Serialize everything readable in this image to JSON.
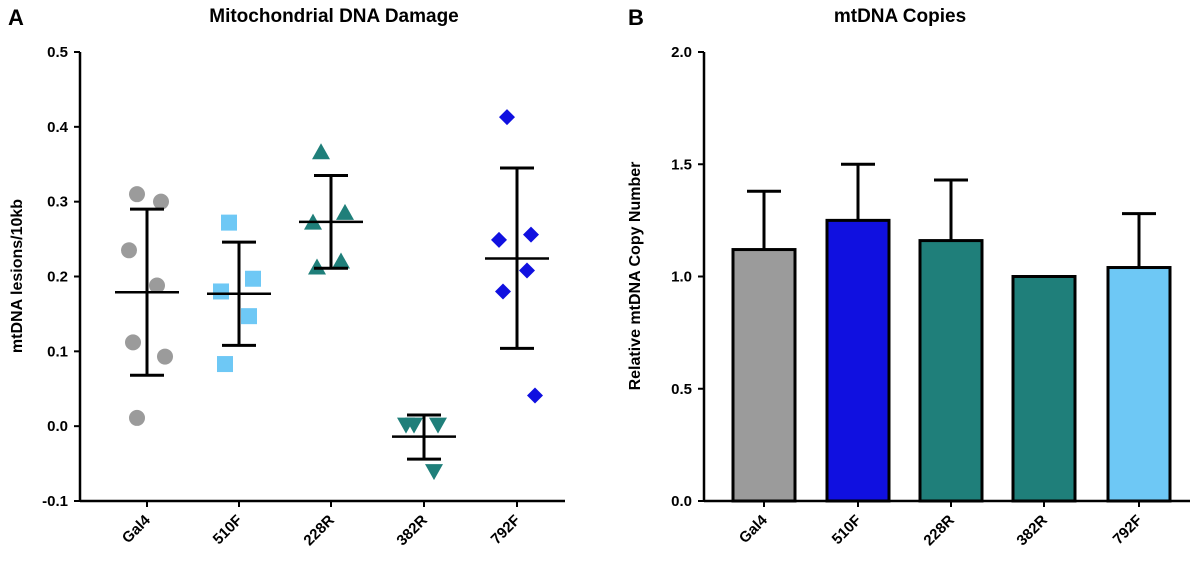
{
  "panels": [
    {
      "letter": "A",
      "title": "Mitochondrial DNA Damage",
      "ylabel": "mtDNA lesions/10kb"
    },
    {
      "letter": "B",
      "title": "mtDNA Copies",
      "ylabel": "Relative mtDNA Copy Number"
    }
  ],
  "chart_data": [
    {
      "type": "scatter",
      "title": "Mitochondrial DNA Damage",
      "xlabel": "",
      "ylabel": "mtDNA lesions/10kb",
      "ylim": [
        -0.1,
        0.5
      ],
      "yticks": [
        "-0.1",
        "0.0",
        "0.1",
        "0.2",
        "0.3",
        "0.4",
        "0.5"
      ],
      "grid": false,
      "categories": [
        "Gal4",
        "510F",
        "228R",
        "382R",
        "792F"
      ],
      "colors": [
        "#9b9b9b",
        "#6ec8f5",
        "#1f7f7a",
        "#1f7f7a",
        "#1010e0"
      ],
      "markers": [
        "circle",
        "square",
        "triangle-up",
        "triangle-down",
        "diamond"
      ],
      "points": [
        [
          0.31,
          0.3,
          0.235,
          0.188,
          0.112,
          0.093,
          0.011
        ],
        [
          0.272,
          0.197,
          0.18,
          0.147,
          0.083
        ],
        [
          0.366,
          0.285,
          0.272,
          0.22,
          0.212
        ],
        [
          0.002,
          0.002,
          0.002,
          -0.06
        ],
        [
          0.413,
          0.256,
          0.249,
          0.208,
          0.18,
          0.041
        ]
      ],
      "mean": [
        0.179,
        0.177,
        0.273,
        -0.014,
        0.224
      ],
      "error_low": [
        0.068,
        0.108,
        0.211,
        -0.044,
        0.104
      ],
      "error_high": [
        0.29,
        0.246,
        0.335,
        0.015,
        0.345
      ]
    },
    {
      "type": "bar",
      "title": "mtDNA Copies",
      "xlabel": "",
      "ylabel": "Relative mtDNA Copy Number",
      "ylim": [
        0.0,
        2.0
      ],
      "yticks": [
        "0.0",
        "0.5",
        "1.0",
        "1.5",
        "2.0"
      ],
      "grid": false,
      "categories": [
        "Gal4",
        "510F",
        "228R",
        "382R",
        "792F"
      ],
      "colors": [
        "#9b9b9b",
        "#1010e0",
        "#1f7f7a",
        "#1f7f7a",
        "#6ec8f5"
      ],
      "values": [
        1.12,
        1.25,
        1.16,
        1.0,
        1.04
      ],
      "error_high": [
        1.38,
        1.5,
        1.43,
        1.0,
        1.28
      ]
    }
  ]
}
